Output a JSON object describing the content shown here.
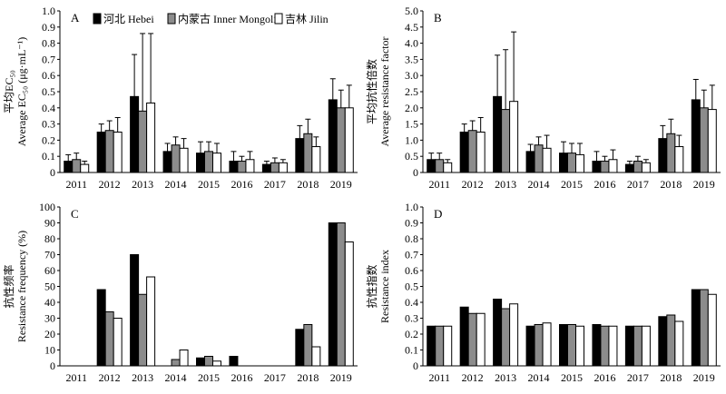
{
  "chart_data": [
    {
      "panel": "A",
      "type": "bar",
      "categories": [
        "2011",
        "2012",
        "2013",
        "2014",
        "2015",
        "2016",
        "2017",
        "2018",
        "2019"
      ],
      "series": [
        {
          "name": "河北 Hebei",
          "values": [
            0.07,
            0.25,
            0.47,
            0.13,
            0.12,
            0.07,
            0.05,
            0.21,
            0.45
          ],
          "errors": [
            0.04,
            0.05,
            0.26,
            0.05,
            0.07,
            0.06,
            0.02,
            0.08,
            0.13
          ]
        },
        {
          "name": "内蒙古 Inner Mongolia",
          "values": [
            0.08,
            0.26,
            0.38,
            0.17,
            0.13,
            0.07,
            0.06,
            0.24,
            0.4
          ],
          "errors": [
            0.04,
            0.06,
            0.48,
            0.05,
            0.06,
            0.03,
            0.03,
            0.09,
            0.11
          ]
        },
        {
          "name": "吉林 Jilin",
          "values": [
            0.05,
            0.25,
            0.43,
            0.15,
            0.12,
            0.08,
            0.06,
            0.16,
            0.4
          ],
          "errors": [
            0.02,
            0.09,
            0.43,
            0.06,
            0.06,
            0.05,
            0.02,
            0.06,
            0.14
          ]
        }
      ],
      "ylabel_cn": "平均EC₅₀",
      "ylabel_en": "Average EC₅₀ (μg·mL⁻¹)",
      "ylim": [
        0,
        1.0
      ],
      "ytick_labels": [
        "0",
        "0.1",
        "0.2",
        "0.3",
        "0.4",
        "0.5",
        "0.6",
        "0.7",
        "0.8",
        "0.9",
        "1.0"
      ],
      "error_bars": true,
      "legend": "top"
    },
    {
      "panel": "B",
      "type": "bar",
      "categories": [
        "2011",
        "2012",
        "2013",
        "2014",
        "2015",
        "2016",
        "2017",
        "2018",
        "2019"
      ],
      "series": [
        {
          "name": "河北 Hebei",
          "values": [
            0.4,
            1.25,
            2.35,
            0.65,
            0.6,
            0.35,
            0.25,
            1.05,
            2.25
          ],
          "errors": [
            0.2,
            0.25,
            1.28,
            0.22,
            0.35,
            0.3,
            0.1,
            0.4,
            0.63
          ]
        },
        {
          "name": "内蒙古 Inner Mongolia",
          "values": [
            0.4,
            1.3,
            1.95,
            0.85,
            0.6,
            0.35,
            0.35,
            1.2,
            2.0
          ],
          "errors": [
            0.2,
            0.3,
            1.85,
            0.25,
            0.3,
            0.15,
            0.15,
            0.45,
            0.55
          ]
        },
        {
          "name": "吉林 Jilin",
          "values": [
            0.3,
            1.25,
            2.2,
            0.75,
            0.55,
            0.4,
            0.3,
            0.8,
            1.95
          ],
          "errors": [
            0.1,
            0.45,
            2.15,
            0.4,
            0.35,
            0.3,
            0.1,
            0.35,
            0.75
          ]
        }
      ],
      "ylabel_cn": "平均抗性倍数",
      "ylabel_en": "Average resistance factor",
      "ylim": [
        0,
        5.0
      ],
      "ytick_labels": [
        "0",
        "0.5",
        "1.0",
        "1.5",
        "2.0",
        "2.5",
        "3.0",
        "3.5",
        "4.0",
        "4.5",
        "5.0"
      ],
      "error_bars": true
    },
    {
      "panel": "C",
      "type": "bar",
      "categories": [
        "2011",
        "2012",
        "2013",
        "2014",
        "2015",
        "2016",
        "2017",
        "2018",
        "2019"
      ],
      "series": [
        {
          "name": "河北 Hebei",
          "values": [
            0,
            48,
            70,
            0,
            5,
            6,
            0,
            23,
            90
          ]
        },
        {
          "name": "内蒙古 Inner Mongolia",
          "values": [
            0,
            34,
            45,
            4,
            6,
            0,
            0,
            26,
            90
          ]
        },
        {
          "name": "吉林 Jilin",
          "values": [
            0,
            30,
            56,
            10,
            3,
            0,
            0,
            12,
            78
          ]
        }
      ],
      "ylabel_cn": "抗性频率",
      "ylabel_en": "Resistance frequency (%)",
      "ylim": [
        0,
        100
      ],
      "ytick_labels": [
        "0",
        "10",
        "20",
        "30",
        "40",
        "50",
        "60",
        "70",
        "80",
        "90",
        "100"
      ],
      "error_bars": false
    },
    {
      "panel": "D",
      "type": "bar",
      "categories": [
        "2011",
        "2012",
        "2013",
        "2014",
        "2015",
        "2016",
        "2017",
        "2018",
        "2019"
      ],
      "series": [
        {
          "name": "河北 Hebei",
          "values": [
            0.25,
            0.37,
            0.42,
            0.25,
            0.26,
            0.26,
            0.25,
            0.31,
            0.48
          ]
        },
        {
          "name": "内蒙古 Inner Mongolia",
          "values": [
            0.25,
            0.33,
            0.36,
            0.26,
            0.26,
            0.25,
            0.25,
            0.32,
            0.48
          ]
        },
        {
          "name": "吉林 Jilin",
          "values": [
            0.25,
            0.33,
            0.39,
            0.27,
            0.25,
            0.25,
            0.25,
            0.28,
            0.45
          ]
        }
      ],
      "ylabel_cn": "抗性指数",
      "ylabel_en": "Resistance index",
      "ylim": [
        0,
        1.0
      ],
      "ytick_labels": [
        "0",
        "0.1",
        "0.2",
        "0.3",
        "0.4",
        "0.5",
        "0.6",
        "0.7",
        "0.8",
        "0.9",
        "1.0"
      ],
      "error_bars": false
    }
  ],
  "colors": {
    "hebei": "#000000",
    "inner_mongolia": "#8c8c8c",
    "jilin": "#ffffff",
    "stroke": "#000000"
  }
}
